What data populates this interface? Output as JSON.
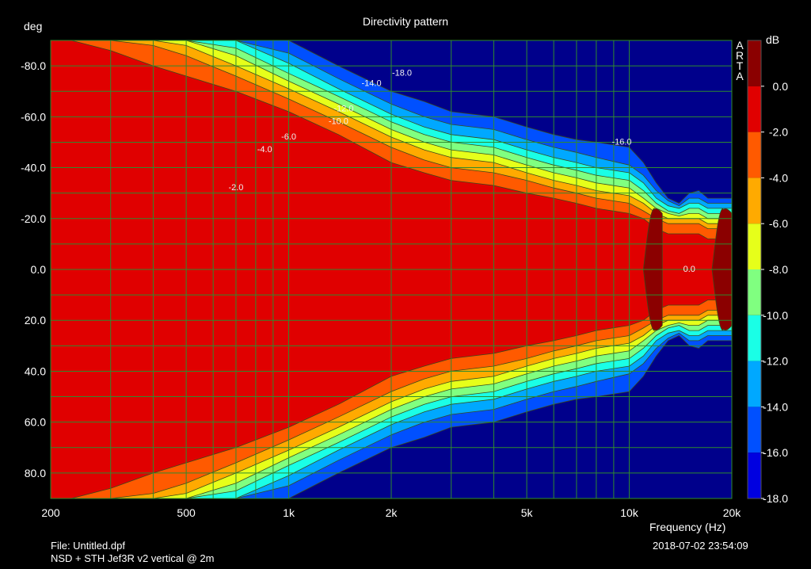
{
  "chart_data": {
    "type": "heatmap",
    "title": "Directivity pattern",
    "xlabel": "Frequency (Hz)",
    "ylabel": "deg",
    "x_scale": "log",
    "xlim": [
      200,
      20000
    ],
    "ylim": [
      -90,
      90
    ],
    "x_ticks": [
      {
        "value": 200,
        "label": "200"
      },
      {
        "value": 500,
        "label": "500"
      },
      {
        "value": 1000,
        "label": "1k"
      },
      {
        "value": 2000,
        "label": "2k"
      },
      {
        "value": 5000,
        "label": "5k"
      },
      {
        "value": 10000,
        "label": "10k"
      },
      {
        "value": 20000,
        "label": "20k"
      }
    ],
    "y_ticks": [
      -80,
      -60,
      -40,
      -20,
      0,
      20,
      40,
      60,
      80
    ],
    "y_tick_labels": [
      "-80.0",
      "-60.0",
      "-40.0",
      "-20.0",
      "0.0",
      "20.0",
      "40.0",
      "60.0",
      "80.0"
    ],
    "colorbar": {
      "label": "dB",
      "range": [
        -18,
        2
      ],
      "ticks": [
        0,
        -2,
        -4,
        -6,
        -8,
        -10,
        -12,
        -14,
        -16,
        -18
      ],
      "tick_labels": [
        "0.0",
        "-2.0",
        "-4.0",
        "-6.0",
        "-8.0",
        "-10.0",
        "-12.0",
        "-14.0",
        "-16.0",
        "-18.0"
      ],
      "colors": [
        "#8b0000",
        "#e00000",
        "#ff5a00",
        "#ffaa00",
        "#e6ff1a",
        "#80ff80",
        "#1affe6",
        "#00a8ff",
        "#0050ff",
        "#0000e0",
        "#00008b"
      ]
    },
    "contour_angle_deg": {
      "frequencies_hz": [
        200,
        230,
        300,
        400,
        500,
        700,
        1000,
        1400,
        2000,
        2500,
        3000,
        4000,
        5000,
        6000,
        7000,
        8000,
        10000,
        11000,
        12000,
        13000,
        14000,
        15000,
        16000,
        17000,
        18000,
        19000,
        20000
      ],
      "levels": [
        {
          "db": -2,
          "angle": [
            90,
            90,
            86,
            80,
            76,
            70,
            62,
            53,
            42,
            38,
            35,
            33,
            30,
            28,
            26,
            24,
            22,
            20,
            16,
            14,
            14,
            14,
            14,
            12,
            12,
            12,
            12
          ]
        },
        {
          "db": -4,
          "angle": [
            90,
            90,
            90,
            88,
            84,
            76,
            67,
            58,
            48,
            43,
            40,
            38,
            35,
            32,
            30,
            28,
            26,
            23,
            20,
            18,
            18,
            18,
            18,
            16,
            16,
            16,
            16
          ]
        },
        {
          "db": -6,
          "angle": [
            90,
            90,
            90,
            90,
            88,
            80,
            71,
            62,
            52,
            47,
            44,
            42,
            38,
            35,
            33,
            31,
            29,
            26,
            22,
            20,
            20,
            20,
            20,
            18,
            18,
            18,
            18
          ]
        },
        {
          "db": -8,
          "angle": [
            90,
            90,
            90,
            90,
            90,
            84,
            74,
            65,
            55,
            50,
            47,
            45,
            41,
            38,
            36,
            34,
            32,
            28,
            24,
            22,
            21,
            22,
            22,
            20,
            20,
            20,
            20
          ]
        },
        {
          "db": -10,
          "angle": [
            90,
            90,
            90,
            90,
            90,
            87,
            77,
            68,
            58,
            53,
            50,
            48,
            44,
            41,
            39,
            37,
            35,
            31,
            26,
            23,
            22,
            24,
            24,
            22,
            22,
            22,
            22
          ]
        },
        {
          "db": -12,
          "angle": [
            90,
            90,
            90,
            90,
            90,
            90,
            81,
            71,
            61,
            56,
            53,
            51,
            47,
            44,
            42,
            40,
            38,
            34,
            28,
            25,
            24,
            26,
            26,
            24,
            24,
            24,
            24
          ]
        },
        {
          "db": -14,
          "angle": [
            90,
            90,
            90,
            90,
            90,
            90,
            85,
            75,
            65,
            60,
            57,
            55,
            51,
            48,
            46,
            44,
            41,
            37,
            31,
            27,
            25,
            28,
            28,
            26,
            26,
            26,
            26
          ]
        },
        {
          "db": -16,
          "angle": [
            90,
            90,
            90,
            90,
            90,
            90,
            90,
            80,
            70,
            66,
            62,
            60,
            56,
            53,
            51,
            50,
            48,
            42,
            34,
            28,
            26,
            30,
            31,
            28,
            28,
            28,
            28
          ]
        }
      ],
      "zero_db_islands_hz": [
        [
          11000,
          12500
        ],
        [
          17500,
          20000
        ]
      ],
      "zero_db_island_halfwidth_deg": 10
    },
    "annotations": [
      {
        "text": "-2.0",
        "x_hz": 700,
        "y_deg": -32
      },
      {
        "text": "-4.0",
        "x_hz": 850,
        "y_deg": -47
      },
      {
        "text": "-6.0",
        "x_hz": 1000,
        "y_deg": -52
      },
      {
        "text": "-10.0",
        "x_hz": 1400,
        "y_deg": -58
      },
      {
        "text": "-12.0",
        "x_hz": 1450,
        "y_deg": -63
      },
      {
        "text": "-14.0",
        "x_hz": 1750,
        "y_deg": -73
      },
      {
        "text": "-18.0",
        "x_hz": 2150,
        "y_deg": -77
      },
      {
        "text": "-16.0",
        "x_hz": 9500,
        "y_deg": -50
      },
      {
        "text": "0.0",
        "x_hz": 15000,
        "y_deg": 0
      }
    ]
  },
  "app_label": "A R T A",
  "footer": {
    "file": "File: Untitled.dpf",
    "description": "NSD + STH Jef3R v2 vertical @ 2m",
    "timestamp": "2018-07-02   23:54:09"
  },
  "grid_color": "#2e8b2e"
}
